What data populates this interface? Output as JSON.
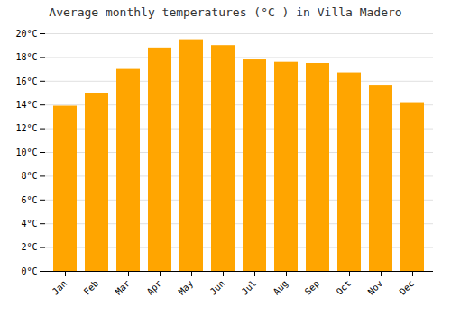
{
  "chart_data": {
    "type": "bar",
    "title": "Average monthly temperatures (°C ) in Villa Madero",
    "categories": [
      "Jan",
      "Feb",
      "Mar",
      "Apr",
      "May",
      "Jun",
      "Jul",
      "Aug",
      "Sep",
      "Oct",
      "Nov",
      "Dec"
    ],
    "values": [
      13.9,
      15.0,
      17.0,
      18.8,
      19.5,
      19.0,
      17.8,
      17.6,
      17.5,
      16.7,
      15.6,
      14.2
    ],
    "color": "#FFA500",
    "ylim": [
      0,
      20
    ],
    "yticks": [
      {
        "value": 0,
        "label": "0°C"
      },
      {
        "value": 2,
        "label": "2°C"
      },
      {
        "value": 4,
        "label": "4°C"
      },
      {
        "value": 6,
        "label": "6°C"
      },
      {
        "value": 8,
        "label": "8°C"
      },
      {
        "value": 10,
        "label": "10°C"
      },
      {
        "value": 12,
        "label": "12°C"
      },
      {
        "value": 14,
        "label": "14°C"
      },
      {
        "value": 16,
        "label": "16°C"
      },
      {
        "value": 18,
        "label": "18°C"
      },
      {
        "value": 20,
        "label": "20°C"
      }
    ],
    "grid": true
  }
}
